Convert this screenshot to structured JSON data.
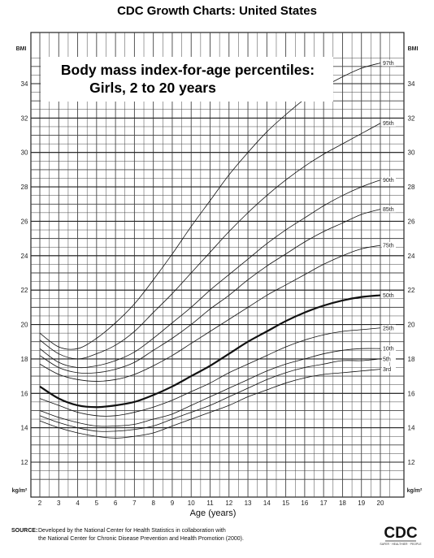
{
  "header": {
    "title": "CDC Growth Charts: United States"
  },
  "footer": {
    "source_bold": "SOURCE:",
    "source_line1": "Developed by the National Center for Health Statistics in collaboration with",
    "source_line2": "the National Center for Chronic Disease Prevention and Health Promotion (2000).",
    "logo_text": "CDC",
    "logo_sub": "SAFER · HEALTHIER · PEOPLE"
  },
  "chart_data": {
    "type": "line",
    "title_line1": "Body mass index-for-age percentiles:",
    "title_line2": "Girls, 2 to 20 years",
    "xlabel": "Age (years)",
    "ylabel_top": "BMI",
    "ylabel_bottom": "kg/m²",
    "xlim": [
      2,
      20.5
    ],
    "ylim": [
      11,
      35.8
    ],
    "x_ticks": [
      2,
      3,
      4,
      5,
      6,
      7,
      8,
      9,
      10,
      11,
      12,
      13,
      14,
      15,
      16,
      17,
      18,
      19,
      20
    ],
    "y_ticks": [
      12,
      14,
      16,
      18,
      20,
      22,
      24,
      26,
      28,
      30,
      32,
      34
    ],
    "grid": true,
    "x": [
      2,
      3,
      4,
      5,
      6,
      7,
      8,
      9,
      10,
      11,
      12,
      13,
      14,
      15,
      16,
      17,
      18,
      19,
      20
    ],
    "series": [
      {
        "name": "97th",
        "bold": false,
        "values": [
          19.5,
          18.7,
          18.6,
          19.2,
          20.1,
          21.2,
          22.6,
          24.1,
          25.7,
          27.2,
          28.7,
          30.0,
          31.2,
          32.2,
          33.1,
          33.8,
          34.4,
          34.9,
          35.2
        ]
      },
      {
        "name": "95th",
        "bold": false,
        "values": [
          19.1,
          18.3,
          18.0,
          18.3,
          18.8,
          19.6,
          20.7,
          21.8,
          23.0,
          24.2,
          25.4,
          26.5,
          27.5,
          28.4,
          29.2,
          29.9,
          30.5,
          31.1,
          31.7
        ]
      },
      {
        "name": "90th",
        "bold": false,
        "values": [
          18.6,
          17.8,
          17.5,
          17.6,
          17.9,
          18.4,
          19.2,
          20.1,
          21.0,
          22.0,
          22.9,
          23.8,
          24.7,
          25.5,
          26.2,
          26.9,
          27.5,
          28.0,
          28.4
        ]
      },
      {
        "name": "85th",
        "bold": false,
        "values": [
          18.2,
          17.5,
          17.2,
          17.2,
          17.4,
          17.8,
          18.5,
          19.2,
          20.0,
          20.9,
          21.7,
          22.6,
          23.4,
          24.1,
          24.8,
          25.4,
          25.9,
          26.4,
          26.7
        ]
      },
      {
        "name": "75th",
        "bold": false,
        "values": [
          17.7,
          17.1,
          16.8,
          16.7,
          16.8,
          17.1,
          17.6,
          18.2,
          18.9,
          19.6,
          20.3,
          21.0,
          21.7,
          22.3,
          22.9,
          23.5,
          24.0,
          24.4,
          24.6
        ]
      },
      {
        "name": "50th",
        "bold": true,
        "values": [
          16.4,
          15.7,
          15.3,
          15.2,
          15.3,
          15.5,
          15.9,
          16.4,
          17.0,
          17.6,
          18.3,
          19.0,
          19.6,
          20.2,
          20.7,
          21.1,
          21.4,
          21.6,
          21.7
        ]
      },
      {
        "name": "25th",
        "bold": false,
        "values": [
          15.7,
          15.3,
          14.9,
          14.7,
          14.7,
          14.9,
          15.2,
          15.6,
          16.1,
          16.6,
          17.2,
          17.7,
          18.2,
          18.7,
          19.1,
          19.4,
          19.6,
          19.7,
          19.8
        ]
      },
      {
        "name": "10th",
        "bold": false,
        "values": [
          15.0,
          14.6,
          14.3,
          14.1,
          14.1,
          14.2,
          14.5,
          14.8,
          15.3,
          15.8,
          16.3,
          16.8,
          17.3,
          17.7,
          18.0,
          18.3,
          18.5,
          18.6,
          18.6
        ]
      },
      {
        "name": "5th",
        "bold": false,
        "values": [
          14.7,
          14.3,
          14.0,
          13.8,
          13.8,
          13.9,
          14.1,
          14.5,
          14.9,
          15.3,
          15.8,
          16.3,
          16.8,
          17.2,
          17.5,
          17.7,
          17.9,
          17.9,
          18.0
        ]
      },
      {
        "name": "3rd",
        "bold": false,
        "values": [
          14.4,
          14.0,
          13.7,
          13.5,
          13.4,
          13.5,
          13.7,
          14.1,
          14.5,
          14.9,
          15.3,
          15.8,
          16.2,
          16.6,
          16.9,
          17.1,
          17.2,
          17.3,
          17.4
        ]
      }
    ]
  }
}
